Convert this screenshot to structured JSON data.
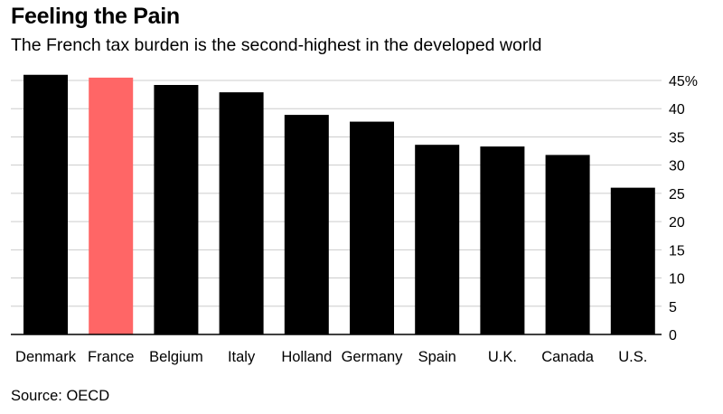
{
  "header": {
    "title": "Feeling the Pain",
    "subtitle": "The French tax burden is the second-highest in the developed world"
  },
  "footer": {
    "source": "Source: OECD"
  },
  "colors": {
    "bar": "#000000",
    "highlight": "#ff6666",
    "grid": "#cccccc",
    "axis": "#000000"
  },
  "chart_data": {
    "type": "bar",
    "title": "Feeling the Pain",
    "subtitle": "The French tax burden is the second-highest in the developed world",
    "categories": [
      "Denmark",
      "France",
      "Belgium",
      "Italy",
      "Holland",
      "Germany",
      "Spain",
      "U.K.",
      "Canada",
      "U.S."
    ],
    "values": [
      46.0,
      45.5,
      44.2,
      42.9,
      38.9,
      37.7,
      33.6,
      33.3,
      31.8,
      26.0
    ],
    "highlight": "France",
    "ylim": [
      0,
      45
    ],
    "yticks": [
      0,
      5,
      10,
      15,
      20,
      25,
      30,
      35,
      40,
      45
    ],
    "ytick_labels": [
      "0",
      "5",
      "10",
      "15",
      "20",
      "25",
      "30",
      "35",
      "40",
      "45%"
    ],
    "y_axis_position": "right",
    "grid": true,
    "xlabel": "",
    "ylabel": ""
  }
}
